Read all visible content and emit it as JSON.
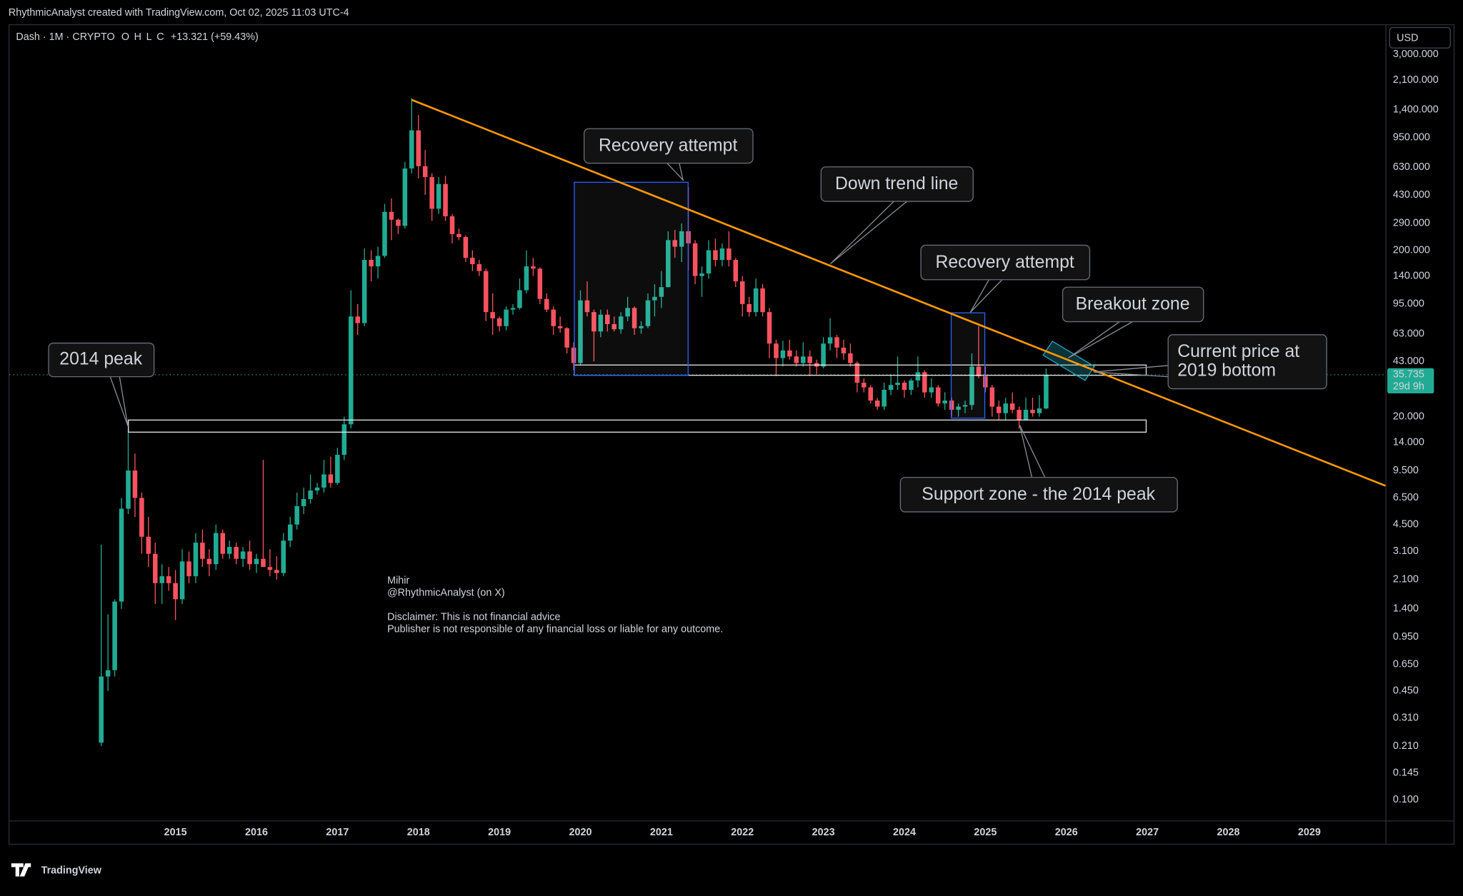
{
  "chart_data": {
    "type": "candlestick",
    "header": "RhythmicAnalyst created with TradingView.com, Oct 02, 2025 11:03 UTC-4",
    "symbol": "Dash · 1M · CRYPTO",
    "ohlc_labels": [
      "O",
      "H",
      "L",
      "C"
    ],
    "change": "+13.321 (+59.43%)",
    "currency": "USD",
    "countdown": "29d 9h",
    "up_color": "#22ab94",
    "down_color": "#f7525f",
    "log_scale": true,
    "xlim": [
      2012.95,
      2029.94
    ],
    "xticks": [
      2015,
      2016,
      2017,
      2018,
      2019,
      2020,
      2021,
      2022,
      2023,
      2024,
      2025,
      2026,
      2027,
      2028,
      2029
    ],
    "ylim": [
      0.075,
      4500
    ],
    "yticks": [
      {
        "value": 0.1,
        "label": "0.100"
      },
      {
        "value": 0.145,
        "label": "0.145"
      },
      {
        "value": 0.21,
        "label": "0.210"
      },
      {
        "value": 0.31,
        "label": "0.310"
      },
      {
        "value": 0.45,
        "label": "0.450"
      },
      {
        "value": 0.65,
        "label": "0.650"
      },
      {
        "value": 0.95,
        "label": "0.950"
      },
      {
        "value": 1.4,
        "label": "1.400"
      },
      {
        "value": 2.1,
        "label": "2.100"
      },
      {
        "value": 3.1,
        "label": "3.100"
      },
      {
        "value": 4.5,
        "label": "4.500"
      },
      {
        "value": 6.5,
        "label": "6.500"
      },
      {
        "value": 9.5,
        "label": "9.500"
      },
      {
        "value": 14,
        "label": "14.000"
      },
      {
        "value": 20,
        "label": "20.000"
      },
      {
        "value": 43,
        "label": "43.000"
      },
      {
        "value": 63,
        "label": "63.000"
      },
      {
        "value": 95,
        "label": "95.000"
      },
      {
        "value": 140,
        "label": "140.000"
      },
      {
        "value": 200,
        "label": "200.000"
      },
      {
        "value": 290,
        "label": "290.000"
      },
      {
        "value": 430,
        "label": "430.000"
      },
      {
        "value": 630,
        "label": "630.000"
      },
      {
        "value": 950,
        "label": "950.000"
      },
      {
        "value": 1400,
        "label": "1,400.000"
      },
      {
        "value": 2100,
        "label": "2,100.000"
      },
      {
        "value": 3000,
        "label": "3,000.000"
      }
    ],
    "x": [
      "2014-02",
      "2014-03",
      "2014-04",
      "2014-05",
      "2014-06",
      "2014-07",
      "2014-08",
      "2014-09",
      "2014-10",
      "2014-11",
      "2014-12",
      "2015-01",
      "2015-02",
      "2015-03",
      "2015-04",
      "2015-05",
      "2015-06",
      "2015-07",
      "2015-08",
      "2015-09",
      "2015-10",
      "2015-11",
      "2015-12",
      "2016-01",
      "2016-02",
      "2016-03",
      "2016-04",
      "2016-05",
      "2016-06",
      "2016-07",
      "2016-08",
      "2016-09",
      "2016-10",
      "2016-11",
      "2016-12",
      "2017-01",
      "2017-02",
      "2017-03",
      "2017-04",
      "2017-05",
      "2017-06",
      "2017-07",
      "2017-08",
      "2017-09",
      "2017-10",
      "2017-11",
      "2017-12",
      "2018-01",
      "2018-02",
      "2018-03",
      "2018-04",
      "2018-05",
      "2018-06",
      "2018-07",
      "2018-08",
      "2018-09",
      "2018-10",
      "2018-11",
      "2018-12",
      "2019-01",
      "2019-02",
      "2019-03",
      "2019-04",
      "2019-05",
      "2019-06",
      "2019-07",
      "2019-08",
      "2019-09",
      "2019-10",
      "2019-11",
      "2019-12",
      "2020-01",
      "2020-02",
      "2020-03",
      "2020-04",
      "2020-05",
      "2020-06",
      "2020-07",
      "2020-08",
      "2020-09",
      "2020-10",
      "2020-11",
      "2020-12",
      "2021-01",
      "2021-02",
      "2021-03",
      "2021-04",
      "2021-05",
      "2021-06",
      "2021-07",
      "2021-08",
      "2021-09",
      "2021-10",
      "2021-11",
      "2021-12",
      "2022-01",
      "2022-02",
      "2022-03",
      "2022-04",
      "2022-05",
      "2022-06",
      "2022-07",
      "2022-08",
      "2022-09",
      "2022-10",
      "2022-11",
      "2022-12",
      "2023-01",
      "2023-02",
      "2023-03",
      "2023-04",
      "2023-05",
      "2023-06",
      "2023-07",
      "2023-08",
      "2023-09",
      "2023-10",
      "2023-11",
      "2023-12",
      "2024-01",
      "2024-02",
      "2024-03",
      "2024-04",
      "2024-05",
      "2024-06",
      "2024-07",
      "2024-08",
      "2024-09",
      "2024-10",
      "2024-11",
      "2024-12",
      "2025-01",
      "2025-02",
      "2025-03",
      "2025-04",
      "2025-05",
      "2025-06",
      "2025-07",
      "2025-08",
      "2025-09",
      "2025-10"
    ],
    "candles": [
      [
        0.22,
        3.4,
        0.21,
        0.55
      ],
      [
        0.55,
        1.3,
        0.45,
        0.6
      ],
      [
        0.6,
        1.6,
        0.55,
        1.55
      ],
      [
        1.55,
        6.5,
        1.4,
        5.6
      ],
      [
        5.6,
        17,
        5.2,
        9.5
      ],
      [
        9.5,
        12,
        5,
        6.5
      ],
      [
        6.5,
        7,
        3,
        3.8
      ],
      [
        3.8,
        5,
        2.5,
        3
      ],
      [
        3,
        3.5,
        1.5,
        2
      ],
      [
        2,
        2.6,
        1.5,
        2.2
      ],
      [
        2.2,
        2.5,
        1.8,
        2
      ],
      [
        2,
        2.4,
        1.2,
        1.6
      ],
      [
        1.6,
        3.2,
        1.5,
        2.7
      ],
      [
        2.7,
        3.1,
        2,
        2.2
      ],
      [
        2.2,
        4,
        2,
        3.5
      ],
      [
        3.5,
        4.2,
        2.5,
        2.8
      ],
      [
        2.8,
        3.2,
        2.2,
        2.6
      ],
      [
        2.6,
        4.5,
        2.4,
        4
      ],
      [
        4,
        4.2,
        2.8,
        3
      ],
      [
        3,
        3.6,
        2.8,
        3.3
      ],
      [
        3.3,
        3.5,
        2.6,
        2.8
      ],
      [
        2.8,
        3.3,
        2.5,
        3.1
      ],
      [
        3.1,
        3.6,
        2.4,
        2.6
      ],
      [
        2.6,
        3,
        2.3,
        2.8
      ],
      [
        2.8,
        11,
        2.6,
        2.5
      ],
      [
        2.5,
        3.2,
        2.2,
        2.4
      ],
      [
        2.4,
        2.9,
        2.1,
        2.3
      ],
      [
        2.3,
        4,
        2.2,
        3.6
      ],
      [
        3.6,
        5,
        3.3,
        4.5
      ],
      [
        4.5,
        7,
        4.2,
        5.8
      ],
      [
        5.8,
        7.5,
        5.2,
        6.4
      ],
      [
        6.4,
        9,
        6,
        7.2
      ],
      [
        7.2,
        8,
        6.8,
        7.5
      ],
      [
        7.5,
        11,
        7,
        9
      ],
      [
        9,
        11.5,
        7.5,
        8
      ],
      [
        8,
        13,
        7.8,
        11.8
      ],
      [
        11.8,
        20,
        11,
        18
      ],
      [
        18,
        115,
        17,
        80
      ],
      [
        80,
        95,
        62,
        73
      ],
      [
        73,
        205,
        70,
        175
      ],
      [
        175,
        200,
        130,
        160
      ],
      [
        160,
        210,
        135,
        185
      ],
      [
        185,
        380,
        180,
        340
      ],
      [
        340,
        410,
        230,
        305
      ],
      [
        305,
        310,
        250,
        280
      ],
      [
        280,
        680,
        270,
        620
      ],
      [
        620,
        1640,
        580,
        1050
      ],
      [
        1050,
        1300,
        540,
        640
      ],
      [
        640,
        800,
        430,
        550
      ],
      [
        550,
        580,
        300,
        355
      ],
      [
        355,
        550,
        330,
        500
      ],
      [
        500,
        560,
        300,
        320
      ],
      [
        320,
        330,
        220,
        250
      ],
      [
        250,
        270,
        230,
        240
      ],
      [
        240,
        245,
        170,
        180
      ],
      [
        180,
        200,
        150,
        165
      ],
      [
        165,
        175,
        140,
        150
      ],
      [
        150,
        155,
        75,
        85
      ],
      [
        85,
        110,
        62,
        78
      ],
      [
        78,
        80,
        65,
        70
      ],
      [
        70,
        92,
        66,
        88
      ],
      [
        88,
        95,
        82,
        90
      ],
      [
        90,
        135,
        88,
        115
      ],
      [
        115,
        200,
        110,
        160
      ],
      [
        160,
        180,
        140,
        155
      ],
      [
        155,
        158,
        95,
        102
      ],
      [
        102,
        110,
        85,
        88
      ],
      [
        88,
        92,
        62,
        70
      ],
      [
        70,
        80,
        64,
        68
      ],
      [
        68,
        69,
        48,
        52
      ],
      [
        52,
        56,
        38,
        42
      ],
      [
        42,
        115,
        41,
        100
      ],
      [
        100,
        130,
        80,
        85
      ],
      [
        85,
        88,
        43,
        65
      ],
      [
        65,
        88,
        60,
        82
      ],
      [
        82,
        88,
        65,
        72
      ],
      [
        72,
        80,
        65,
        67
      ],
      [
        67,
        85,
        63,
        80
      ],
      [
        80,
        105,
        75,
        90
      ],
      [
        90,
        92,
        62,
        68
      ],
      [
        68,
        75,
        63,
        70
      ],
      [
        70,
        110,
        68,
        100
      ],
      [
        100,
        125,
        80,
        105
      ],
      [
        105,
        150,
        90,
        120
      ],
      [
        120,
        260,
        120,
        230
      ],
      [
        230,
        265,
        180,
        210
      ],
      [
        210,
        290,
        170,
        260
      ],
      [
        260,
        480,
        150,
        220
      ],
      [
        220,
        230,
        125,
        140
      ],
      [
        140,
        160,
        105,
        145
      ],
      [
        145,
        230,
        135,
        200
      ],
      [
        200,
        235,
        160,
        175
      ],
      [
        175,
        220,
        160,
        205
      ],
      [
        205,
        260,
        160,
        175
      ],
      [
        175,
        180,
        120,
        130
      ],
      [
        130,
        140,
        80,
        95
      ],
      [
        95,
        105,
        80,
        85
      ],
      [
        85,
        135,
        80,
        118
      ],
      [
        118,
        125,
        80,
        85
      ],
      [
        85,
        90,
        45,
        55
      ],
      [
        55,
        58,
        35,
        45
      ],
      [
        45,
        57,
        40,
        50
      ],
      [
        50,
        58,
        44,
        46
      ],
      [
        46,
        50,
        40,
        42
      ],
      [
        42,
        56,
        40,
        46
      ],
      [
        46,
        50,
        35,
        42
      ],
      [
        42,
        44,
        36,
        40
      ],
      [
        40,
        60,
        39,
        55
      ],
      [
        55,
        78,
        50,
        60
      ],
      [
        60,
        62,
        45,
        52
      ],
      [
        52,
        58,
        44,
        48
      ],
      [
        48,
        55,
        40,
        42
      ],
      [
        42,
        43,
        28,
        32
      ],
      [
        32,
        34,
        28,
        30
      ],
      [
        30,
        31,
        24,
        25
      ],
      [
        25,
        26,
        22,
        23
      ],
      [
        23,
        32,
        22,
        29
      ],
      [
        29,
        36,
        27,
        31
      ],
      [
        31,
        46,
        29,
        32
      ],
      [
        32,
        33,
        26,
        29
      ],
      [
        29,
        34,
        27,
        33
      ],
      [
        33,
        46,
        30,
        37
      ],
      [
        37,
        38,
        26,
        28
      ],
      [
        28,
        34,
        26,
        30
      ],
      [
        30,
        31,
        23,
        24
      ],
      [
        24,
        28,
        22,
        25
      ],
      [
        25,
        26,
        20,
        22
      ],
      [
        22,
        24,
        20,
        23
      ],
      [
        23,
        25,
        21,
        23.5
      ],
      [
        23.5,
        48,
        22,
        40
      ],
      [
        40,
        70,
        34,
        35
      ],
      [
        35,
        40,
        28,
        30
      ],
      [
        30,
        31,
        20,
        23
      ],
      [
        23,
        25,
        19,
        21
      ],
      [
        21,
        26,
        19,
        24
      ],
      [
        24,
        28,
        21,
        22
      ],
      [
        22,
        23,
        17,
        19
      ],
      [
        19,
        26,
        19,
        22
      ],
      [
        22,
        26,
        20,
        21
      ],
      [
        21,
        27,
        20,
        22.414
      ],
      [
        22.414,
        38.919,
        22.176,
        35.735
      ]
    ],
    "annotations": [
      "2014 peak",
      "Recovery attempt",
      "Down trend line",
      "Recovery attempt",
      "Breakout zone",
      "Current price at",
      "2019 bottom",
      "Support zone - the 2014 peak"
    ],
    "watermark": [
      "Mihir",
      "@RhythmicAnalyst (on X)",
      "Disclaimer: This is not financial advice",
      "Publisher is not responsible of any financial loss or liable for any outcome."
    ],
    "footer": "TradingView"
  }
}
